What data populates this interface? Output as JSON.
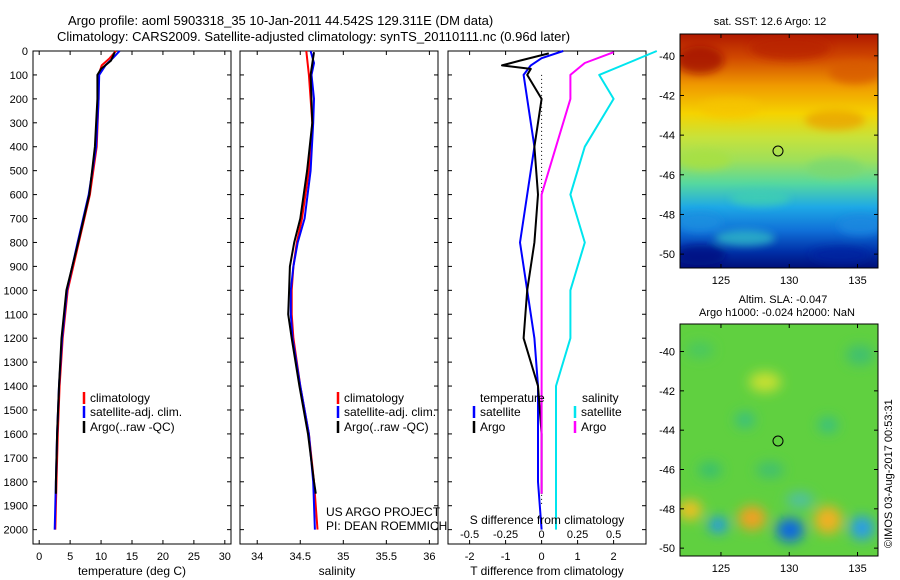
{
  "header": {
    "title_line1": "Argo profile: aoml 5903318_35 10-Jan-2011 44.542S 129.311E (DM data)",
    "title_line2": "Climatology: CARS2009. Satellite-adjusted climatology: synTS_20110111.nc (0.96d later)"
  },
  "colors": {
    "climatology": "#ff0000",
    "satellite": "#0000ff",
    "argo": "#000000",
    "sal_satellite": "#00e5ee",
    "sal_argo": "#ff00ff"
  },
  "depth_axis": {
    "ticks": [
      0,
      100,
      200,
      300,
      400,
      500,
      600,
      700,
      800,
      900,
      1000,
      1100,
      1200,
      1300,
      1400,
      1500,
      1600,
      1700,
      1800,
      1900,
      2000
    ],
    "ylim": [
      0,
      2060
    ]
  },
  "chart_data": [
    {
      "type": "line",
      "xlabel": "temperature (deg C)",
      "xlim": [
        -1,
        31
      ],
      "xticks": [
        0,
        5,
        10,
        15,
        20,
        25,
        30
      ],
      "legend": [
        "climatology",
        "satellite-adj. clim.",
        "Argo(..raw -QC)"
      ],
      "series": [
        {
          "name": "climatology",
          "depth": [
            0,
            30,
            60,
            100,
            200,
            400,
            600,
            800,
            1000,
            1200,
            1400,
            1600,
            1800,
            2000
          ],
          "values": [
            12.4,
            11.4,
            10.1,
            9.6,
            9.6,
            9.3,
            8.2,
            6.4,
            4.6,
            3.8,
            3.3,
            3.0,
            2.8,
            2.6
          ]
        },
        {
          "name": "satellite-adj. clim.",
          "depth": [
            0,
            30,
            60,
            100,
            200,
            400,
            600,
            800,
            1000,
            1200,
            1400,
            1600,
            1800,
            2000
          ],
          "values": [
            13.0,
            11.9,
            10.7,
            9.7,
            9.6,
            9.2,
            8.0,
            6.2,
            4.5,
            3.7,
            3.2,
            2.9,
            2.7,
            2.5
          ]
        },
        {
          "name": "Argo(..raw -QC)",
          "depth": [
            5,
            40,
            75,
            100,
            200,
            400,
            600,
            800,
            1000,
            1200,
            1400,
            1600,
            1800,
            1850
          ],
          "values": [
            12.2,
            11.6,
            10.0,
            9.4,
            9.4,
            9.0,
            8.1,
            6.3,
            4.4,
            3.6,
            3.2,
            2.9,
            2.7,
            2.7
          ]
        }
      ]
    },
    {
      "type": "line",
      "xlabel": "salinity",
      "xlim": [
        33.8,
        36.1
      ],
      "xticks": [
        34,
        34.5,
        35,
        35.5,
        36
      ],
      "legend": [
        "climatology",
        "satellite-adj. clim.",
        "Argo(..raw -QC)"
      ],
      "annotation": [
        "US ARGO PROJECT",
        "PI: DEAN ROEMMICH"
      ],
      "series": [
        {
          "name": "climatology",
          "depth": [
            0,
            100,
            300,
            500,
            700,
            800,
            900,
            1000,
            1100,
            1200,
            1400,
            1600,
            1800,
            2000
          ],
          "values": [
            34.57,
            34.6,
            34.64,
            34.6,
            34.52,
            34.46,
            34.42,
            34.4,
            34.4,
            34.42,
            34.5,
            34.6,
            34.66,
            34.7
          ]
        },
        {
          "name": "satellite-adj. clim.",
          "depth": [
            0,
            50,
            100,
            200,
            300,
            500,
            700,
            800,
            900,
            1000,
            1100,
            1200,
            1400,
            1600,
            1800,
            2000
          ],
          "values": [
            34.62,
            34.66,
            34.63,
            34.66,
            34.65,
            34.62,
            34.55,
            34.47,
            34.42,
            34.39,
            34.39,
            34.41,
            34.5,
            34.6,
            34.65,
            34.67
          ]
        },
        {
          "name": "Argo(..raw -QC)",
          "depth": [
            5,
            100,
            300,
            500,
            700,
            800,
            900,
            1000,
            1100,
            1200,
            1400,
            1600,
            1800,
            1850
          ],
          "values": [
            34.66,
            34.62,
            34.64,
            34.58,
            34.5,
            34.43,
            34.38,
            34.37,
            34.36,
            34.4,
            34.49,
            34.59,
            34.66,
            34.68
          ]
        }
      ]
    },
    {
      "type": "line",
      "xlabel": "T difference from climatology",
      "xlabel2": "S difference from climatology",
      "xlim": [
        -2.6,
        2.9
      ],
      "xticks": [
        -2,
        -1,
        0,
        1,
        2
      ],
      "xticks_s": [
        "-0.5",
        "-0.25",
        "0",
        "0.25",
        "0.5"
      ],
      "legend_temperature_title": "temperature",
      "legend_salinity_title": "salinity",
      "legend_temperature": [
        "satellite",
        "Argo"
      ],
      "legend_salinity": [
        "satellite",
        "Argo"
      ],
      "series": [
        {
          "name": "satellite",
          "depth": [
            0,
            30,
            60,
            100,
            200,
            400,
            600,
            800,
            1000,
            1200,
            1400,
            1600,
            1800,
            2000
          ],
          "values": [
            0.6,
            0.0,
            -0.3,
            -0.5,
            -0.4,
            -0.2,
            -0.4,
            -0.6,
            -0.4,
            -0.2,
            -0.1,
            -0.1,
            -0.1,
            0.0
          ]
        },
        {
          "name": "Argo",
          "depth": [
            10,
            40,
            60,
            75,
            100,
            200,
            400,
            600,
            800,
            1000,
            1200,
            1400,
            1600,
            1800,
            1850
          ],
          "values": [
            0.2,
            -0.6,
            -1.1,
            -0.3,
            -0.4,
            0.0,
            -0.2,
            -0.1,
            -0.2,
            -0.4,
            -0.5,
            -0.1,
            0.0,
            0.0,
            0.0
          ]
        },
        {
          "name": "satellite",
          "depth": [
            0,
            50,
            100,
            200,
            400,
            600,
            800,
            1000,
            1200,
            1400,
            1600,
            1800,
            2000
          ],
          "values": [
            0.8,
            0.6,
            0.4,
            0.5,
            0.3,
            0.2,
            0.3,
            0.2,
            0.2,
            0.1,
            0.1,
            0.1,
            0.1
          ]
        },
        {
          "name": "Argo",
          "depth": [
            5,
            50,
            100,
            200,
            400,
            600,
            800,
            1000,
            1200,
            1400,
            1600,
            1800,
            1850
          ],
          "values": [
            0.5,
            0.3,
            0.2,
            0.2,
            0.1,
            0.0,
            0.0,
            0.0,
            0.0,
            0.0,
            0.0,
            0.0,
            0.0
          ]
        }
      ]
    },
    {
      "type": "heatmap",
      "title": "sat. SST: 12.6  Argo: 12",
      "xticks": [
        125,
        130,
        135
      ],
      "yticks": [
        -40,
        -42,
        -44,
        -46,
        -48,
        -50
      ],
      "xlim": [
        122,
        136.5
      ],
      "ylim": [
        -50.7,
        -38.9
      ],
      "marker": [
        129.3,
        -44.54
      ]
    },
    {
      "type": "heatmap",
      "title": "Altim. SLA: -0.047",
      "subtitle": "Argo h1000: -0.024 h2000: NaN",
      "xticks": [
        125,
        130,
        135
      ],
      "yticks": [
        -40,
        -42,
        -44,
        -46,
        -48,
        -50
      ],
      "xlim": [
        122,
        136.5
      ],
      "ylim": [
        -50.4,
        -38.6
      ],
      "marker": [
        129.3,
        -44.54
      ]
    }
  ],
  "footer_stamp": "©IMOS 03-Aug-2017 00:53:31"
}
